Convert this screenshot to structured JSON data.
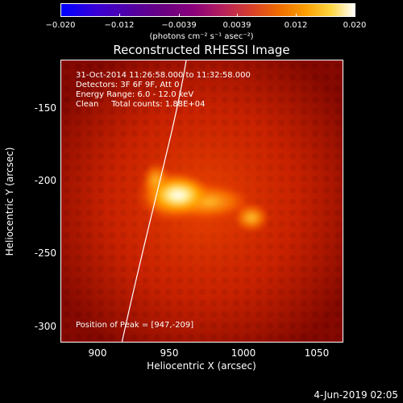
{
  "colorbar": {
    "ticks": [
      "−0.020",
      "−0.012",
      "−0.0039",
      "0.0039",
      "0.012",
      "0.020"
    ],
    "unit": "(photons cm⁻² s⁻¹ asec⁻²)"
  },
  "title": "Reconstructed RHESSI Image",
  "info": {
    "time": "31-Oct-2014 11:26:58.000 to 11:32:58.000",
    "detectors": "Detectors: 3F 6F 9F, Att 0",
    "energy": "Energy Range: 6.0 - 12.0 keV",
    "clean": "Clean     Total counts: 1.88E+04",
    "peak": "Position of Peak = [947,-209]"
  },
  "axes": {
    "xlabel": "Heliocentric X (arcsec)",
    "ylabel": "Heliocentric Y (arcsec)",
    "xticks": [
      "900",
      "950",
      "1000",
      "1050"
    ],
    "yticks": [
      "-150",
      "-200",
      "-250",
      "-300"
    ],
    "xlim": [
      875,
      1066
    ],
    "ylim": [
      -311,
      -120
    ]
  },
  "date_stamp": "4-Jun-2019 02:05"
}
